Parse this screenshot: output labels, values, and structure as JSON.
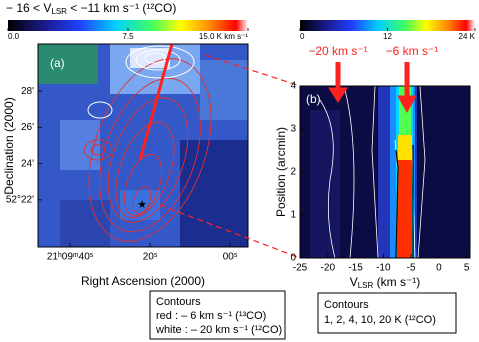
{
  "chart_data": [
    {
      "type": "image-map",
      "title": {
        "pre": "− 16 < V",
        "sub": "LSR",
        "post": " < −11 km s⁻¹ (¹²CO)"
      },
      "panel_label": "(a)",
      "colorbar": {
        "clim": [
          0,
          15
        ],
        "ticks": [
          {
            "value": 0,
            "label": "0.0"
          },
          {
            "value": 7.5,
            "label": "7.5"
          },
          {
            "value": 15,
            "label": "15.0 K km s⁻¹"
          }
        ]
      },
      "x_label": "Right Ascension (2000)",
      "y_label": "Declination (2000)",
      "xlim": [
        48,
        -4.5
      ],
      "xticks": [
        {
          "value": 40,
          "label": "21ʰ09ᵐ40ˢ"
        },
        {
          "value": 20,
          "label": "20ˢ"
        },
        {
          "value": 0,
          "label": "00ˢ"
        }
      ],
      "ylim": [
        19.4,
        30.6
      ],
      "yticks": [
        {
          "value": 28,
          "label": "28'"
        },
        {
          "value": 26,
          "label": "26'"
        },
        {
          "value": 24,
          "label": "24'"
        },
        {
          "value": 22,
          "label": "52°22'"
        }
      ],
      "legend": {
        "title": "Contours",
        "lines": [
          "red : – 6 km s⁻¹ (¹³CO)",
          "white : – 20 km s⁻¹ (¹²CO)"
        ]
      }
    },
    {
      "type": "position-velocity",
      "panel_label": "(b)",
      "colorbar": {
        "clim": [
          0,
          24
        ],
        "ticks": [
          0,
          12,
          {
            "value": 24,
            "label": "24 K"
          }
        ]
      },
      "x_label": {
        "pre": "V",
        "sub": "LSR",
        "post": " (km s⁻¹)"
      },
      "y_label": "Position (arcmin)",
      "xlim": [
        -25,
        5.6
      ],
      "xticks": [
        -25,
        -20,
        -15,
        -10,
        -5,
        0,
        5
      ],
      "ylim": [
        0,
        4
      ],
      "yticks": [
        0,
        1,
        2,
        3,
        4
      ],
      "annotations": [
        "−20 km s⁻¹",
        "−6 km s⁻¹"
      ],
      "legend": {
        "title": "Contours",
        "lines": [
          "1, 2, 4, 10, 20 K (¹²CO)"
        ]
      }
    }
  ]
}
